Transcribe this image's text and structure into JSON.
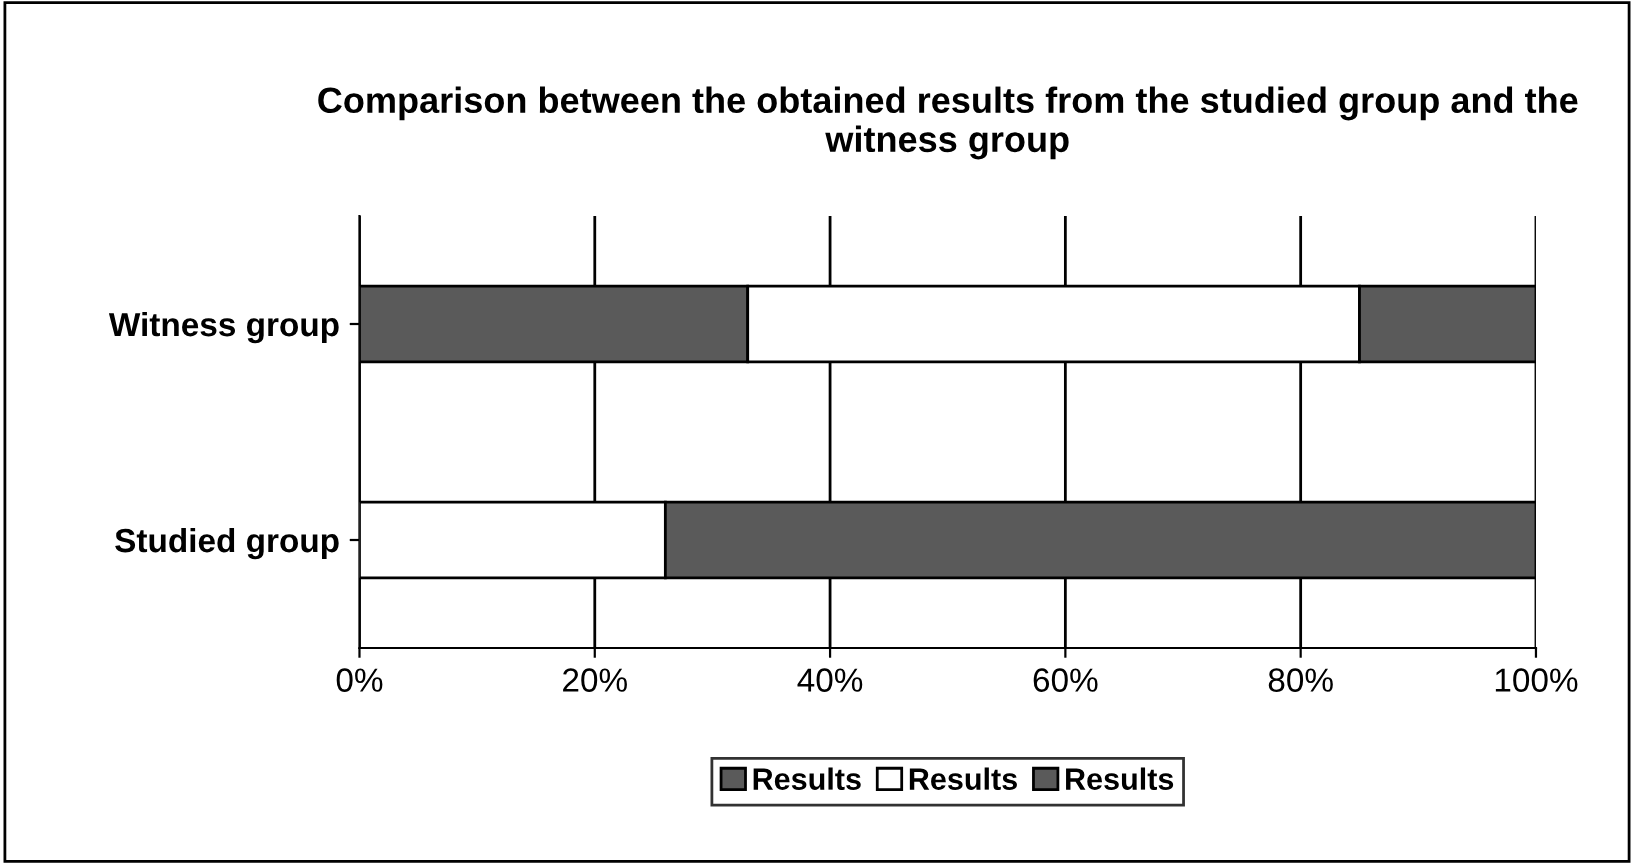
{
  "chart_data": {
    "type": "bar",
    "orientation": "horizontal",
    "stacked": true,
    "title": "Comparison between the obtained results from the studied group and the witness group",
    "categories": [
      "Witness group",
      "Studied group"
    ],
    "series": [
      {
        "name": "Results",
        "color": "#5a5a5a",
        "values": [
          33,
          0
        ]
      },
      {
        "name": "Results",
        "color": "#ffffff",
        "values": [
          52,
          26
        ]
      },
      {
        "name": "Results",
        "color": "#5a5a5a",
        "values": [
          15,
          74
        ]
      }
    ],
    "xlim": [
      0,
      100
    ],
    "xticks": [
      {
        "value": 0,
        "label": "0%"
      },
      {
        "value": 20,
        "label": "20%"
      },
      {
        "value": 40,
        "label": "40%"
      },
      {
        "value": 60,
        "label": "60%"
      },
      {
        "value": 80,
        "label": "80%"
      },
      {
        "value": 100,
        "label": "100%"
      }
    ],
    "grid": "x",
    "legend": "bottom"
  }
}
